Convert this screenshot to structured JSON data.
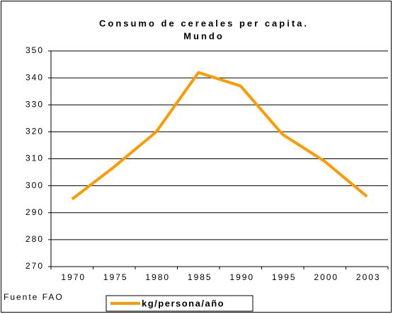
{
  "chart_data": {
    "type": "line",
    "title": "Consumo de cereales per capita.",
    "subtitle": "Mundo",
    "categories": [
      "1970",
      "1975",
      "1980",
      "1985",
      "1990",
      "1995",
      "2000",
      "2003"
    ],
    "series": [
      {
        "name": "kg/persona/año",
        "color": "#ff9900",
        "values": [
          295,
          307,
          320,
          342,
          337,
          319,
          309,
          296
        ]
      }
    ],
    "ylim": [
      270,
      350
    ],
    "yticks": [
      270,
      280,
      290,
      300,
      310,
      320,
      330,
      340,
      350
    ],
    "grid": true,
    "annotation": "Fuente FAO",
    "legend": "bottom"
  }
}
